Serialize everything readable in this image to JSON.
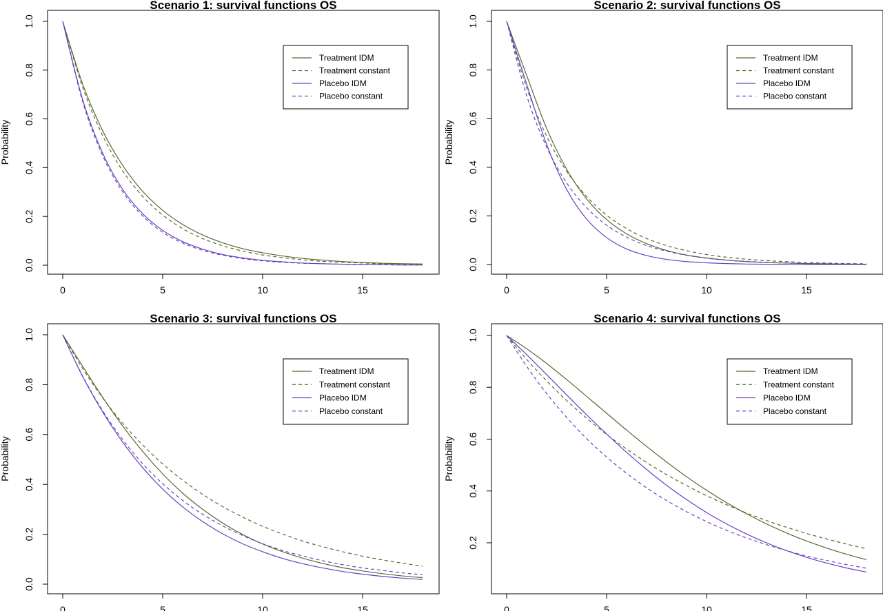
{
  "colors": {
    "treatment": "#556b2f",
    "placebo": "#6a3fc0"
  },
  "chart_data": [
    {
      "type": "line",
      "title": "Scenario 1: survival functions OS",
      "xlabel": "",
      "ylabel": "Probability",
      "xlim": [
        0,
        18
      ],
      "ylim": [
        0,
        1
      ],
      "xticks": [
        "0",
        "5",
        "10",
        "15"
      ],
      "yticks": [
        "0.0",
        "0.2",
        "0.4",
        "0.6",
        "0.8",
        "1.0"
      ],
      "x": [
        0,
        1,
        2,
        3,
        4,
        5,
        6,
        7,
        8,
        9,
        10,
        11,
        12,
        13,
        14,
        15,
        16,
        17,
        18
      ],
      "series": [
        {
          "name": "Treatment IDM",
          "style": "solid",
          "group": "treatment",
          "values": [
            1.0,
            0.742,
            0.551,
            0.409,
            0.303,
            0.225,
            0.167,
            0.124,
            0.092,
            0.068,
            0.051,
            0.038,
            0.028,
            0.021,
            0.015,
            0.011,
            0.008,
            0.006,
            0.005
          ]
        },
        {
          "name": "Treatment constant",
          "style": "dashed",
          "group": "treatment",
          "values": [
            1.0,
            0.729,
            0.531,
            0.387,
            0.282,
            0.206,
            0.15,
            0.109,
            0.08,
            0.058,
            0.042,
            0.031,
            0.022,
            0.016,
            0.012,
            0.009,
            0.006,
            0.005,
            0.003
          ]
        },
        {
          "name": "Placebo IDM",
          "style": "solid",
          "group": "placebo",
          "values": [
            1.0,
            0.678,
            0.459,
            0.311,
            0.211,
            0.143,
            0.097,
            0.066,
            0.044,
            0.03,
            0.02,
            0.014,
            0.009,
            0.006,
            0.004,
            0.003,
            0.002,
            0.001,
            0.001
          ]
        },
        {
          "name": "Placebo constant",
          "style": "dashed",
          "group": "placebo",
          "values": [
            1.0,
            0.67,
            0.449,
            0.301,
            0.202,
            0.135,
            0.091,
            0.061,
            0.041,
            0.027,
            0.018,
            0.012,
            0.008,
            0.006,
            0.004,
            0.002,
            0.002,
            0.001,
            0.001
          ]
        }
      ]
    },
    {
      "type": "line",
      "title": "Scenario 2: survival functions OS",
      "xlabel": "",
      "ylabel": "Probability",
      "xlim": [
        0,
        18
      ],
      "ylim": [
        0,
        1
      ],
      "xticks": [
        "0",
        "5",
        "10",
        "15"
      ],
      "yticks": [
        "0.0",
        "0.2",
        "0.4",
        "0.6",
        "0.8",
        "1.0"
      ],
      "x": [
        0,
        1,
        2,
        3,
        4,
        5,
        6,
        7,
        8,
        9,
        10,
        11,
        12,
        13,
        14,
        15,
        16,
        17,
        18
      ],
      "series": [
        {
          "name": "Treatment IDM",
          "style": "solid",
          "group": "treatment",
          "values": [
            1.0,
            0.778,
            0.56,
            0.392,
            0.27,
            0.185,
            0.126,
            0.086,
            0.058,
            0.039,
            0.027,
            0.018,
            0.012,
            0.008,
            0.006,
            0.004,
            0.003,
            0.002,
            0.001
          ]
        },
        {
          "name": "Treatment constant",
          "style": "dashed",
          "group": "treatment",
          "values": [
            1.0,
            0.727,
            0.528,
            0.384,
            0.28,
            0.203,
            0.148,
            0.107,
            0.078,
            0.057,
            0.041,
            0.03,
            0.022,
            0.016,
            0.012,
            0.008,
            0.006,
            0.004,
            0.003
          ]
        },
        {
          "name": "Placebo IDM",
          "style": "solid",
          "group": "placebo",
          "values": [
            1.0,
            0.742,
            0.494,
            0.309,
            0.187,
            0.111,
            0.064,
            0.037,
            0.021,
            0.012,
            0.007,
            0.004,
            0.002,
            0.001,
            0.001,
            0.0,
            0.0,
            0.0,
            0.0
          ]
        },
        {
          "name": "Placebo constant",
          "style": "dashed",
          "group": "placebo",
          "values": [
            1.0,
            0.695,
            0.483,
            0.336,
            0.234,
            0.162,
            0.113,
            0.078,
            0.055,
            0.038,
            0.026,
            0.018,
            0.013,
            0.009,
            0.006,
            0.004,
            0.003,
            0.002,
            0.001
          ]
        }
      ]
    },
    {
      "type": "line",
      "title": "Scenario 3: survival functions OS",
      "xlabel": "",
      "ylabel": "Probability",
      "xlim": [
        0,
        18
      ],
      "ylim": [
        0,
        1
      ],
      "xticks": [
        "0",
        "5",
        "10",
        "15"
      ],
      "yticks": [
        "0.0",
        "0.2",
        "0.4",
        "0.6",
        "0.8",
        "1.0"
      ],
      "x": [
        0,
        1,
        2,
        3,
        4,
        5,
        6,
        7,
        8,
        9,
        10,
        11,
        12,
        13,
        14,
        15,
        16,
        17,
        18
      ],
      "series": [
        {
          "name": "Treatment IDM",
          "style": "solid",
          "group": "treatment",
          "values": [
            1.0,
            0.873,
            0.749,
            0.634,
            0.532,
            0.442,
            0.365,
            0.3,
            0.245,
            0.199,
            0.161,
            0.13,
            0.104,
            0.083,
            0.066,
            0.053,
            0.042,
            0.033,
            0.026
          ]
        },
        {
          "name": "Treatment constant",
          "style": "dashed",
          "group": "treatment",
          "values": [
            1.0,
            0.864,
            0.747,
            0.645,
            0.558,
            0.482,
            0.417,
            0.36,
            0.311,
            0.269,
            0.232,
            0.201,
            0.173,
            0.15,
            0.13,
            0.112,
            0.097,
            0.084,
            0.072
          ]
        },
        {
          "name": "Placebo IDM",
          "style": "solid",
          "group": "placebo",
          "values": [
            1.0,
            0.832,
            0.69,
            0.569,
            0.467,
            0.381,
            0.31,
            0.251,
            0.202,
            0.162,
            0.13,
            0.103,
            0.082,
            0.065,
            0.051,
            0.04,
            0.031,
            0.024,
            0.019
          ]
        },
        {
          "name": "Placebo constant",
          "style": "dashed",
          "group": "placebo",
          "values": [
            1.0,
            0.834,
            0.695,
            0.58,
            0.483,
            0.403,
            0.336,
            0.28,
            0.234,
            0.195,
            0.162,
            0.135,
            0.113,
            0.094,
            0.078,
            0.065,
            0.055,
            0.045,
            0.038
          ]
        }
      ]
    },
    {
      "type": "line",
      "title": "Scenario 4: survival functions OS",
      "xlabel": "",
      "ylabel": "Probability",
      "xlim": [
        0,
        18
      ],
      "ylim": [
        0.05,
        1
      ],
      "xticks": [
        "0",
        "5",
        "10",
        "15"
      ],
      "yticks": [
        "0.2",
        "0.4",
        "0.6",
        "0.8",
        "1.0"
      ],
      "x": [
        0,
        1,
        2,
        3,
        4,
        5,
        6,
        7,
        8,
        9,
        10,
        11,
        12,
        13,
        14,
        15,
        16,
        17,
        18
      ],
      "series": [
        {
          "name": "Treatment IDM",
          "style": "solid",
          "group": "treatment",
          "values": [
            1.0,
            0.949,
            0.892,
            0.83,
            0.765,
            0.7,
            0.635,
            0.572,
            0.512,
            0.455,
            0.403,
            0.355,
            0.312,
            0.273,
            0.238,
            0.207,
            0.18,
            0.156,
            0.135
          ]
        },
        {
          "name": "Treatment constant",
          "style": "dashed",
          "group": "treatment",
          "values": [
            1.0,
            0.908,
            0.825,
            0.749,
            0.681,
            0.618,
            0.562,
            0.51,
            0.463,
            0.421,
            0.382,
            0.347,
            0.315,
            0.286,
            0.26,
            0.236,
            0.215,
            0.195,
            0.177
          ]
        },
        {
          "name": "Placebo IDM",
          "style": "solid",
          "group": "placebo",
          "values": [
            1.0,
            0.926,
            0.849,
            0.771,
            0.694,
            0.62,
            0.549,
            0.483,
            0.422,
            0.367,
            0.317,
            0.273,
            0.234,
            0.2,
            0.17,
            0.144,
            0.122,
            0.103,
            0.087
          ]
        },
        {
          "name": "Placebo constant",
          "style": "dashed",
          "group": "placebo",
          "values": [
            1.0,
            0.881,
            0.776,
            0.684,
            0.602,
            0.531,
            0.468,
            0.412,
            0.363,
            0.32,
            0.282,
            0.248,
            0.219,
            0.193,
            0.17,
            0.149,
            0.132,
            0.116,
            0.102
          ]
        }
      ]
    }
  ]
}
